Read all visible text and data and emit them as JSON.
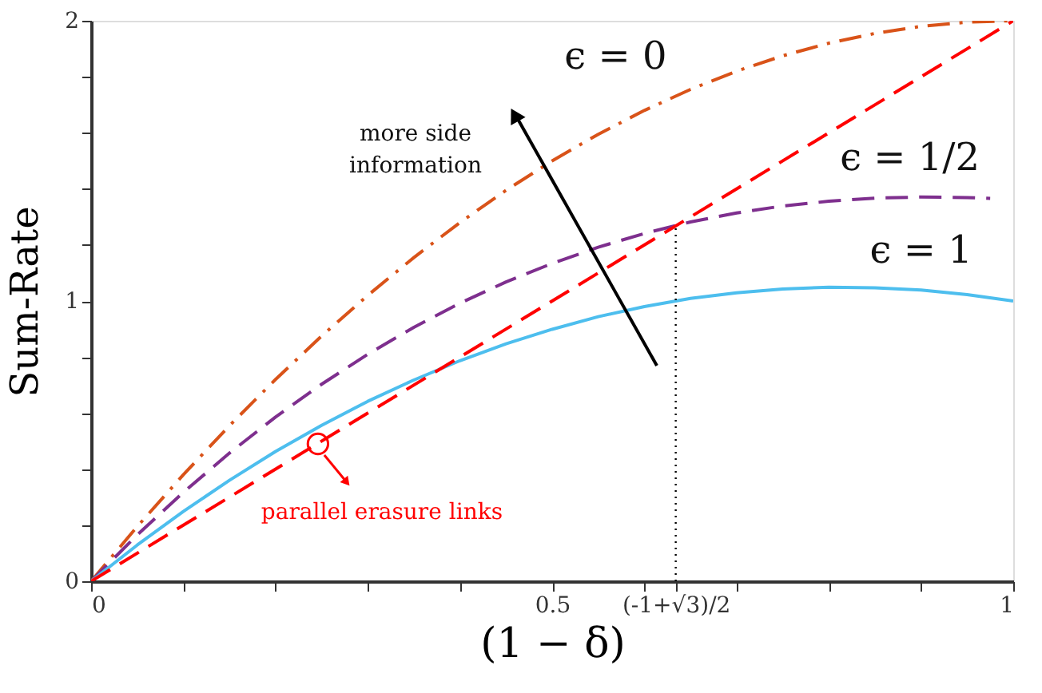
{
  "chart_data": {
    "type": "line",
    "xlabel": "(1 − δ)",
    "ylabel": "Sum-Rate",
    "xlim": [
      0,
      1
    ],
    "ylim": [
      0,
      2
    ],
    "xticks": [
      0,
      {
        "value": 0.1,
        "label": null
      },
      {
        "value": 0.2,
        "label": null
      },
      {
        "value": 0.3,
        "label": null
      },
      {
        "value": 0.4,
        "label": null
      },
      0.5,
      {
        "value": 0.634,
        "label": "(-1+√3)/2"
      },
      {
        "value": 0.6,
        "label": null
      },
      {
        "value": 0.7,
        "label": null
      },
      {
        "value": 0.8,
        "label": null
      },
      {
        "value": 0.9,
        "label": null
      },
      1
    ],
    "yticks": [
      0,
      {
        "value": 0.2,
        "label": null
      },
      {
        "value": 0.4,
        "label": null
      },
      {
        "value": 0.6,
        "label": null
      },
      {
        "value": 0.8,
        "label": null
      },
      1,
      {
        "value": 1.2,
        "label": null
      },
      {
        "value": 1.4,
        "label": null
      },
      {
        "value": 1.6,
        "label": null
      },
      {
        "value": 1.8,
        "label": null
      },
      2
    ],
    "grid": false,
    "marker": "none",
    "series": [
      {
        "name": "ϵ = 0",
        "color": "#d95319",
        "line_style": "dashdot",
        "x": [
          0,
          0.05,
          0.1,
          0.15,
          0.2,
          0.25,
          0.3,
          0.35,
          0.4,
          0.45,
          0.5,
          0.55,
          0.6,
          0.65,
          0.7,
          0.75,
          0.8,
          0.85,
          0.9,
          0.95,
          1
        ],
        "values": [
          0,
          0.195,
          0.38,
          0.555,
          0.72,
          0.875,
          1.02,
          1.155,
          1.28,
          1.395,
          1.5,
          1.595,
          1.68,
          1.755,
          1.82,
          1.875,
          1.92,
          1.955,
          1.98,
          1.995,
          2
        ]
      },
      {
        "name": "ϵ = 1/2",
        "color": "#7e2f8e",
        "line_style": "dashed",
        "x": [
          0,
          0.05,
          0.1,
          0.15,
          0.2,
          0.25,
          0.3,
          0.35,
          0.4,
          0.45,
          0.5,
          0.55,
          0.6,
          0.65,
          0.7,
          0.75,
          0.8,
          0.85,
          0.9,
          0.95,
          0.975
        ],
        "values": [
          0,
          0.165,
          0.317,
          0.457,
          0.586,
          0.703,
          0.81,
          0.906,
          0.992,
          1.068,
          1.134,
          1.192,
          1.241,
          1.282,
          1.314,
          1.339,
          1.356,
          1.367,
          1.371,
          1.369,
          1.366
        ]
      },
      {
        "name": "ϵ = 1",
        "color": "#4dbeee",
        "line_style": "solid",
        "x": [
          0,
          0.05,
          0.1,
          0.15,
          0.2,
          0.25,
          0.3,
          0.35,
          0.4,
          0.45,
          0.5,
          0.55,
          0.6,
          0.65,
          0.7,
          0.75,
          0.8,
          0.85,
          0.9,
          0.95,
          1
        ],
        "values": [
          0,
          0.129,
          0.249,
          0.36,
          0.463,
          0.556,
          0.642,
          0.718,
          0.787,
          0.847,
          0.899,
          0.944,
          0.98,
          1.009,
          1.029,
          1.043,
          1.049,
          1.047,
          1.039,
          1.023,
          1.0
        ]
      },
      {
        "color": "#ff0000",
        "line_style": "dashed",
        "x": [
          0,
          1
        ],
        "values": [
          0,
          2
        ]
      },
      {
        "color": "#000000",
        "line_style": "dotted",
        "x": [
          0.634,
          0.634
        ],
        "values": [
          0,
          1.268
        ]
      }
    ],
    "annotations": [
      "more side information",
      {
        "text": "parallel erasure links",
        "x": 0.246,
        "y": 0.49
      }
    ]
  }
}
